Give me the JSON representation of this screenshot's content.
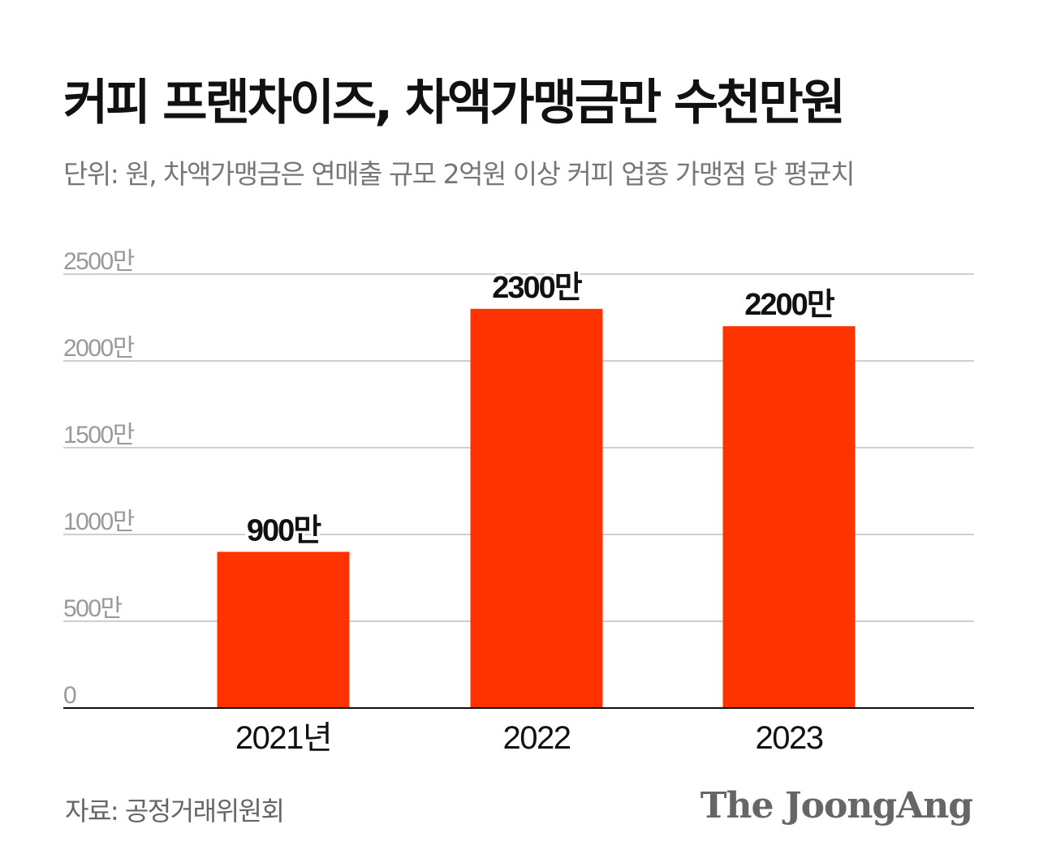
{
  "title": "커피 프랜차이즈, 차액가맹금만 수천만원",
  "subtitle": "단위: 원, 차액가맹금은 연매출 규모 2억원 이상 커피 업종 가맹점 당 평균치",
  "source": "자료: 공정거래위원회",
  "logo": "The JoongAng",
  "chart_data": {
    "type": "bar",
    "categories": [
      "2021년",
      "2022",
      "2023"
    ],
    "values": [
      900,
      2300,
      2200
    ],
    "data_labels": [
      "900만",
      "2300만",
      "2200만"
    ],
    "ylim": [
      0,
      2500
    ],
    "yticks": [
      0,
      500,
      1000,
      1500,
      2000,
      2500
    ],
    "ytick_labels": [
      "0",
      "500만",
      "1000만",
      "1500만",
      "2000만",
      "2500만"
    ],
    "grid": true,
    "bar_color": "#ff3300"
  }
}
